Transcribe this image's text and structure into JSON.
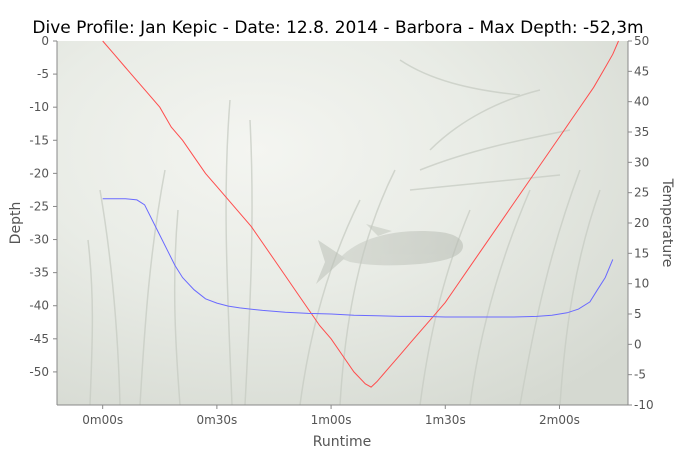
{
  "chart_data": {
    "type": "line",
    "title": "Dive Profile: Jan Kepic - Date: 12.8. 2014 - Barbora - Max Depth: -52,3m",
    "xlabel": "Runtime",
    "ylabel_left": "Depth",
    "ylabel_right": "Temperature",
    "x_unit": "seconds",
    "xlim": [
      -12,
      138
    ],
    "ylim_left": [
      -55,
      0
    ],
    "ylim_right": [
      -10,
      50
    ],
    "x_ticks": [
      0,
      30,
      60,
      90,
      120
    ],
    "x_tick_labels": [
      "0m00s",
      "0m30s",
      "1m00s",
      "1m30s",
      "2m00s"
    ],
    "y_left_ticks": [
      0,
      -5,
      -10,
      -15,
      -20,
      -25,
      -30,
      -35,
      -40,
      -45,
      -50
    ],
    "y_left_tick_labels": [
      "0",
      "-5",
      "-10",
      "-15",
      "-20",
      "-25",
      "-30",
      "-35",
      "-40",
      "-45",
      "-50"
    ],
    "y_right_ticks": [
      50,
      45,
      40,
      35,
      30,
      25,
      20,
      15,
      10,
      5,
      0,
      -5,
      -10
    ],
    "y_right_tick_labels": [
      "50",
      "45",
      "40",
      "35",
      "30",
      "25",
      "20",
      "15",
      "10",
      "5",
      "0",
      "-5",
      "-10"
    ],
    "grid": false,
    "background": "underwater photograph with reeds and a fish",
    "series": [
      {
        "axis": "left",
        "color": "#ff4d4d",
        "points": [
          [
            0,
            0
          ],
          [
            3,
            -2
          ],
          [
            6,
            -4
          ],
          [
            9,
            -6
          ],
          [
            12,
            -8
          ],
          [
            15,
            -10
          ],
          [
            18,
            -13
          ],
          [
            21,
            -15
          ],
          [
            24,
            -17.5
          ],
          [
            27,
            -20
          ],
          [
            30,
            -22
          ],
          [
            33,
            -24
          ],
          [
            36,
            -26
          ],
          [
            39,
            -28
          ],
          [
            42,
            -30.5
          ],
          [
            45,
            -33
          ],
          [
            48,
            -35.5
          ],
          [
            51,
            -38
          ],
          [
            54,
            -40.5
          ],
          [
            57,
            -43
          ],
          [
            60,
            -45
          ],
          [
            63,
            -47.5
          ],
          [
            66,
            -50
          ],
          [
            69,
            -51.8
          ],
          [
            70.5,
            -52.3
          ],
          [
            72,
            -51.5
          ],
          [
            75,
            -49.5
          ],
          [
            78,
            -47.5
          ],
          [
            81,
            -45.5
          ],
          [
            84,
            -43.5
          ],
          [
            87,
            -41.5
          ],
          [
            90,
            -39.5
          ],
          [
            93,
            -37
          ],
          [
            96,
            -34.5
          ],
          [
            99,
            -32
          ],
          [
            102,
            -29.5
          ],
          [
            105,
            -27
          ],
          [
            108,
            -24.5
          ],
          [
            111,
            -22
          ],
          [
            114,
            -19.5
          ],
          [
            117,
            -17
          ],
          [
            120,
            -14.5
          ],
          [
            123,
            -12
          ],
          [
            126,
            -9.5
          ],
          [
            129,
            -7
          ],
          [
            132,
            -4
          ],
          [
            134,
            -2
          ],
          [
            135.5,
            0
          ]
        ]
      },
      {
        "axis": "right",
        "color": "#6a6aff",
        "points": [
          [
            0,
            24
          ],
          [
            3,
            24
          ],
          [
            6,
            24
          ],
          [
            9,
            23.8
          ],
          [
            11,
            23
          ],
          [
            13,
            20.5
          ],
          [
            15,
            18
          ],
          [
            17,
            15.5
          ],
          [
            19,
            13
          ],
          [
            21,
            11
          ],
          [
            24,
            9
          ],
          [
            27,
            7.5
          ],
          [
            30,
            6.8
          ],
          [
            33,
            6.3
          ],
          [
            36,
            6
          ],
          [
            42,
            5.6
          ],
          [
            48,
            5.3
          ],
          [
            54,
            5.1
          ],
          [
            60,
            5
          ],
          [
            66,
            4.8
          ],
          [
            72,
            4.7
          ],
          [
            78,
            4.6
          ],
          [
            84,
            4.6
          ],
          [
            90,
            4.5
          ],
          [
            96,
            4.5
          ],
          [
            102,
            4.5
          ],
          [
            108,
            4.5
          ],
          [
            114,
            4.6
          ],
          [
            118,
            4.8
          ],
          [
            122,
            5.2
          ],
          [
            125,
            5.8
          ],
          [
            128,
            7
          ],
          [
            130,
            9
          ],
          [
            132,
            11
          ],
          [
            134,
            14
          ]
        ]
      }
    ]
  }
}
